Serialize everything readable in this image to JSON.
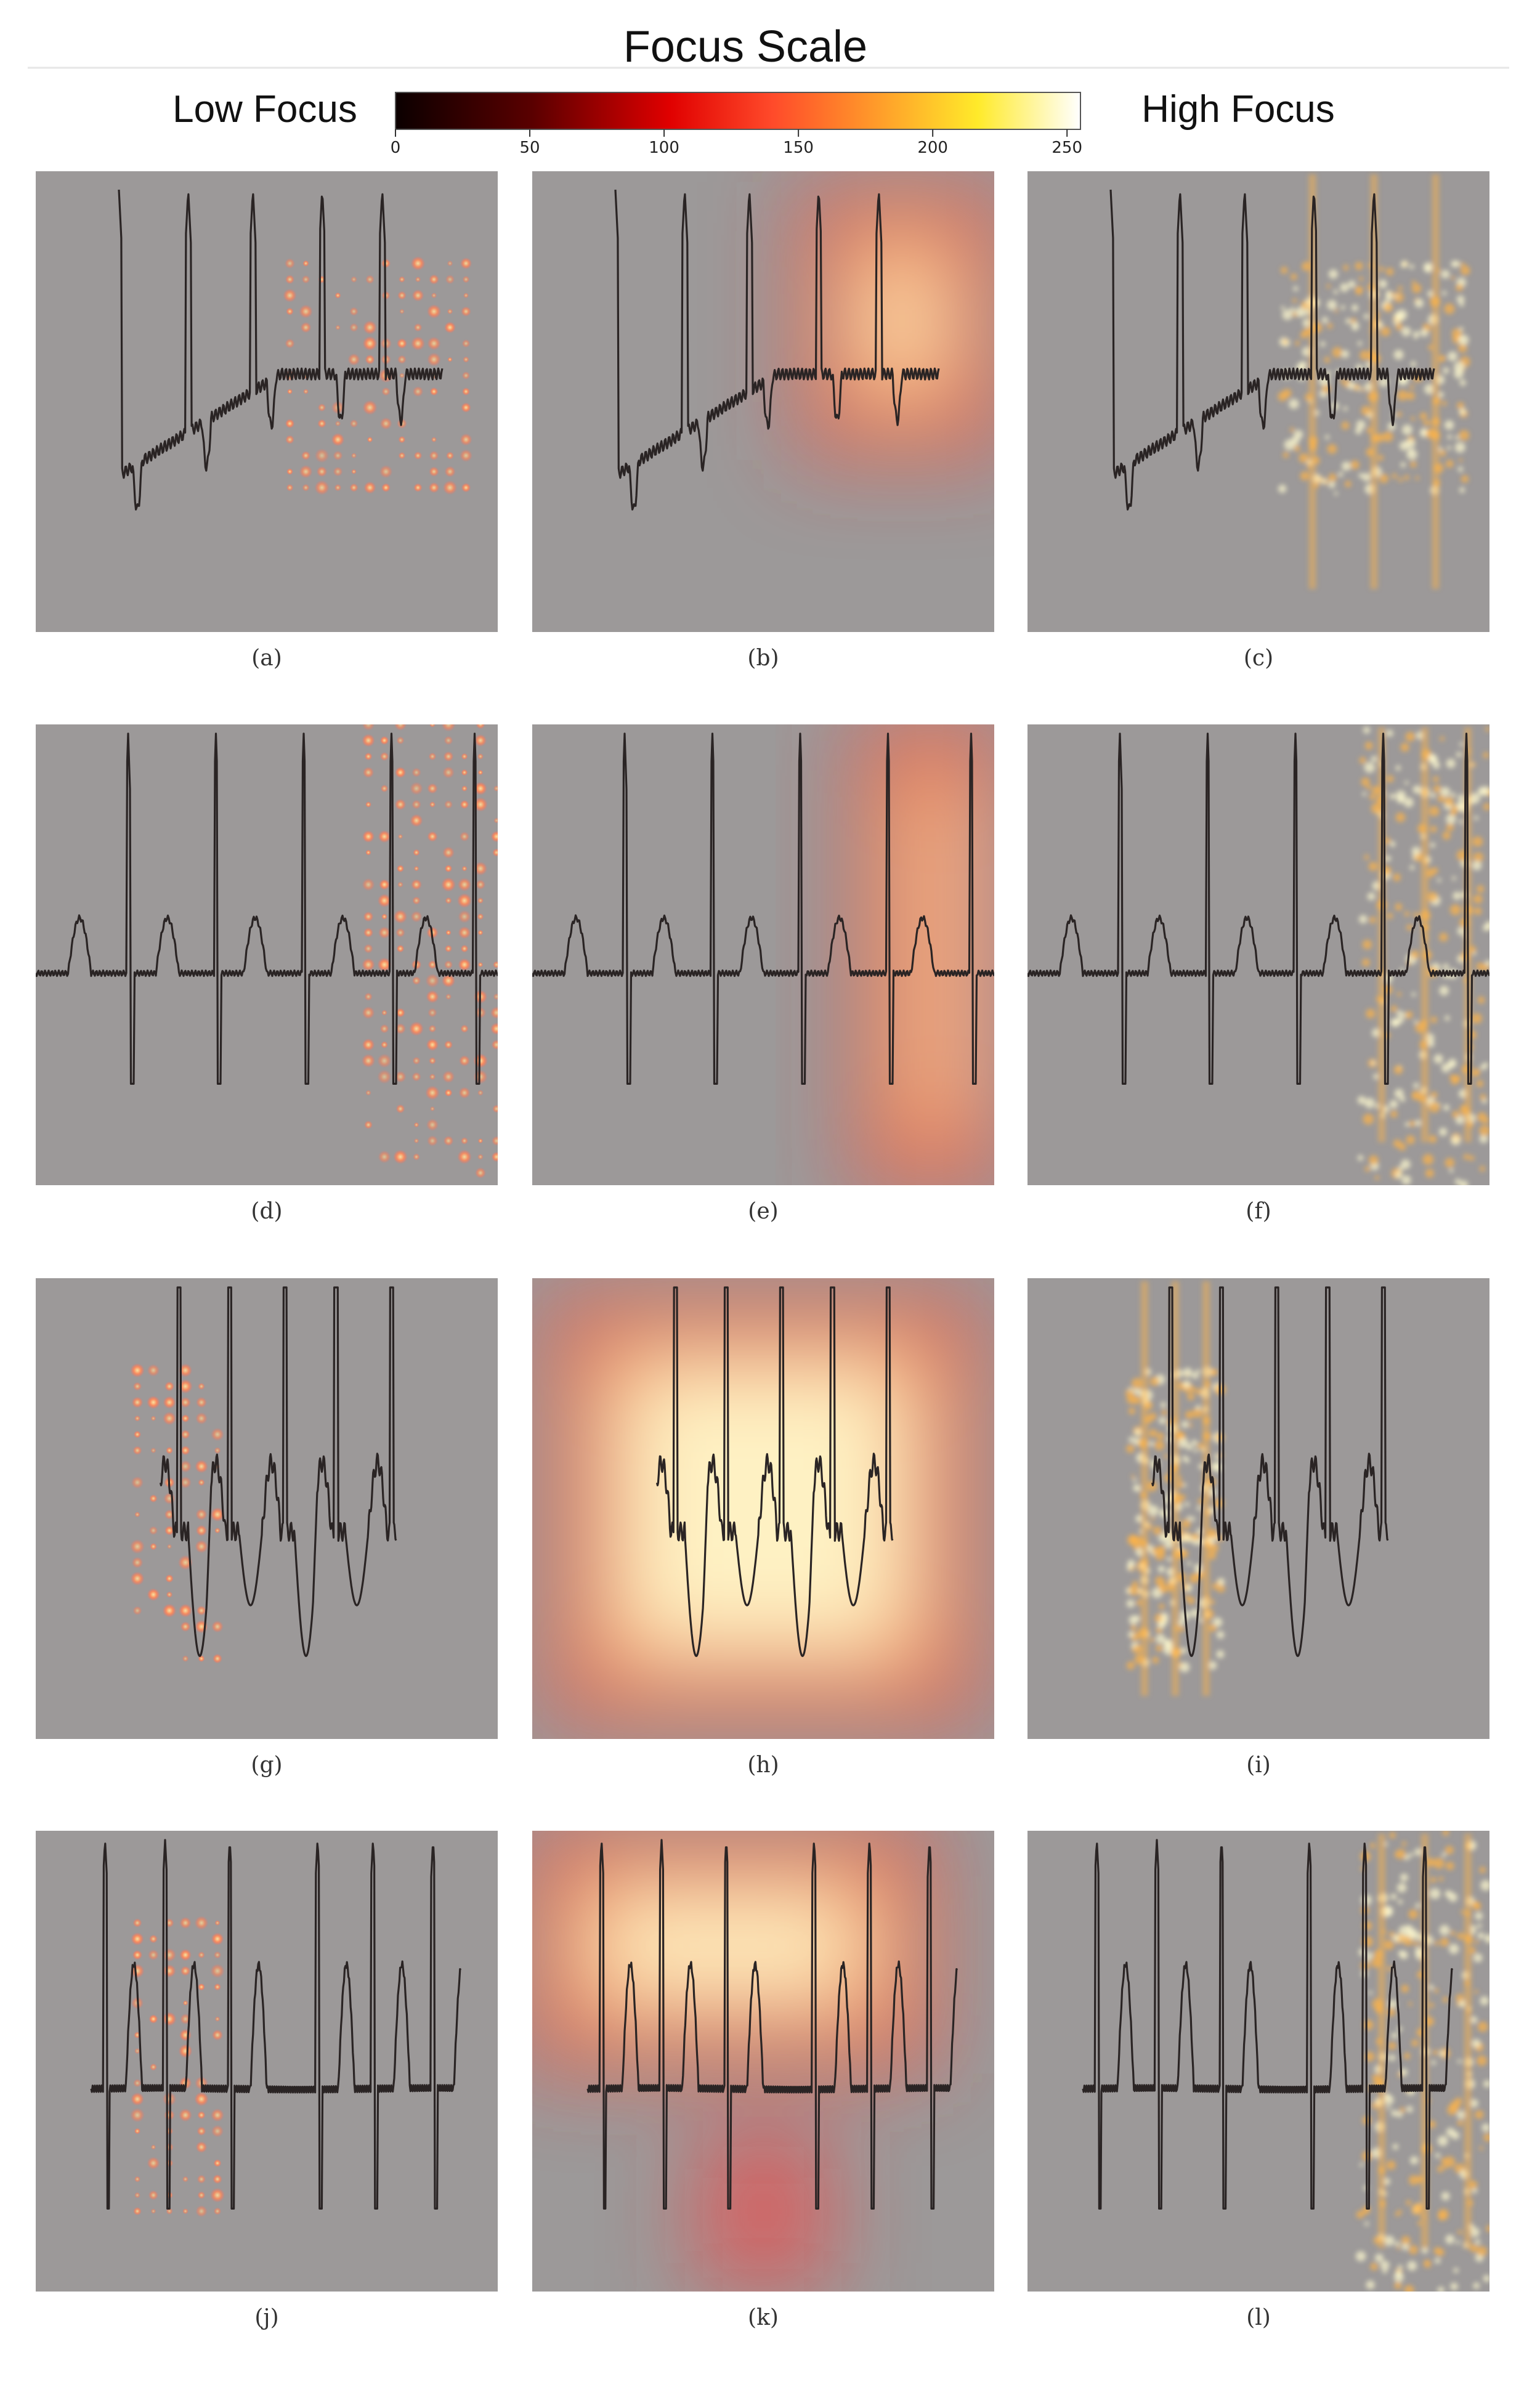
{
  "header": {
    "title": "Focus Scale",
    "low_label": "Low Focus",
    "high_label": "High Focus",
    "ticks": [
      "0",
      "50",
      "100",
      "150",
      "200",
      "250"
    ],
    "tick_values": [
      0,
      50,
      100,
      150,
      200,
      250
    ],
    "scale_max": 255
  },
  "colors": {
    "panel_bg": "#9c9999",
    "trace": "#2a2424",
    "heat_low": "#ff3b3b",
    "heat_mid": "#ffb347",
    "heat_high": "#fffbd0"
  },
  "panels": [
    {
      "id": "a",
      "label": "(a)",
      "method": "dots",
      "focus": "right-center"
    },
    {
      "id": "b",
      "label": "(b)",
      "method": "blob",
      "focus": "top-right"
    },
    {
      "id": "c",
      "label": "(c)",
      "method": "beats",
      "focus": "right-center"
    },
    {
      "id": "d",
      "label": "(d)",
      "method": "dots",
      "focus": "right"
    },
    {
      "id": "e",
      "label": "(e)",
      "method": "blob",
      "focus": "right"
    },
    {
      "id": "f",
      "label": "(f)",
      "method": "beats",
      "focus": "right"
    },
    {
      "id": "g",
      "label": "(g)",
      "method": "dots",
      "focus": "left"
    },
    {
      "id": "h",
      "label": "(h)",
      "method": "blob",
      "focus": "center"
    },
    {
      "id": "i",
      "label": "(i)",
      "method": "beats",
      "focus": "left"
    },
    {
      "id": "j",
      "label": "(j)",
      "method": "dots",
      "focus": "left"
    },
    {
      "id": "k",
      "label": "(k)",
      "method": "blob",
      "focus": "top-left"
    },
    {
      "id": "l",
      "label": "(l)",
      "method": "beats",
      "focus": "right"
    }
  ]
}
